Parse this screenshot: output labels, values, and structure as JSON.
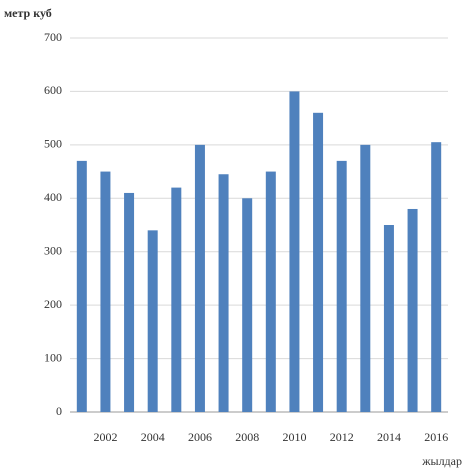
{
  "chart_data": {
    "type": "bar",
    "y_label": "метр куб",
    "x_label": "жылдар",
    "categories": [
      null,
      "2002",
      null,
      "2004",
      null,
      "2006",
      null,
      "2008",
      null,
      "2010",
      null,
      "2012",
      null,
      "2014",
      null,
      "2016"
    ],
    "values": [
      470,
      450,
      410,
      340,
      420,
      500,
      445,
      400,
      450,
      600,
      560,
      470,
      500,
      350,
      380,
      505
    ],
    "color": "#4f81bd",
    "ylim": [
      0,
      700
    ],
    "yticks": [
      0,
      100,
      200,
      300,
      400,
      500,
      600,
      700
    ],
    "grid": true
  }
}
